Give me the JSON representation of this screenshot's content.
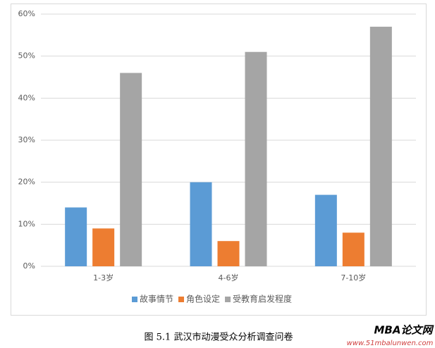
{
  "chart_data": {
    "type": "bar",
    "categories": [
      "1-3岁",
      "4-6岁",
      "7-10岁"
    ],
    "series": [
      {
        "name": "故事情节",
        "color": "#5b9bd5",
        "values": [
          14,
          20,
          17
        ]
      },
      {
        "name": "角色设定",
        "color": "#ed7d31",
        "values": [
          9,
          6,
          8
        ]
      },
      {
        "name": "受教育启发程度",
        "color": "#a5a5a5",
        "values": [
          46,
          51,
          57
        ]
      }
    ],
    "ylim": [
      0,
      60
    ],
    "yticks": [
      {
        "value": 0,
        "label": "0%"
      },
      {
        "value": 10,
        "label": "10%"
      },
      {
        "value": 20,
        "label": "20%"
      },
      {
        "value": 30,
        "label": "30%"
      },
      {
        "value": 40,
        "label": "40%"
      },
      {
        "value": 50,
        "label": "50%"
      },
      {
        "value": 60,
        "label": "60%"
      }
    ],
    "grid": true,
    "legend": "bottom",
    "caption": "图 5.1  武汉市动漫受众分析调查问卷",
    "watermark": "MBA论文网",
    "watermark_url": "www.51mbalunwen.com"
  }
}
